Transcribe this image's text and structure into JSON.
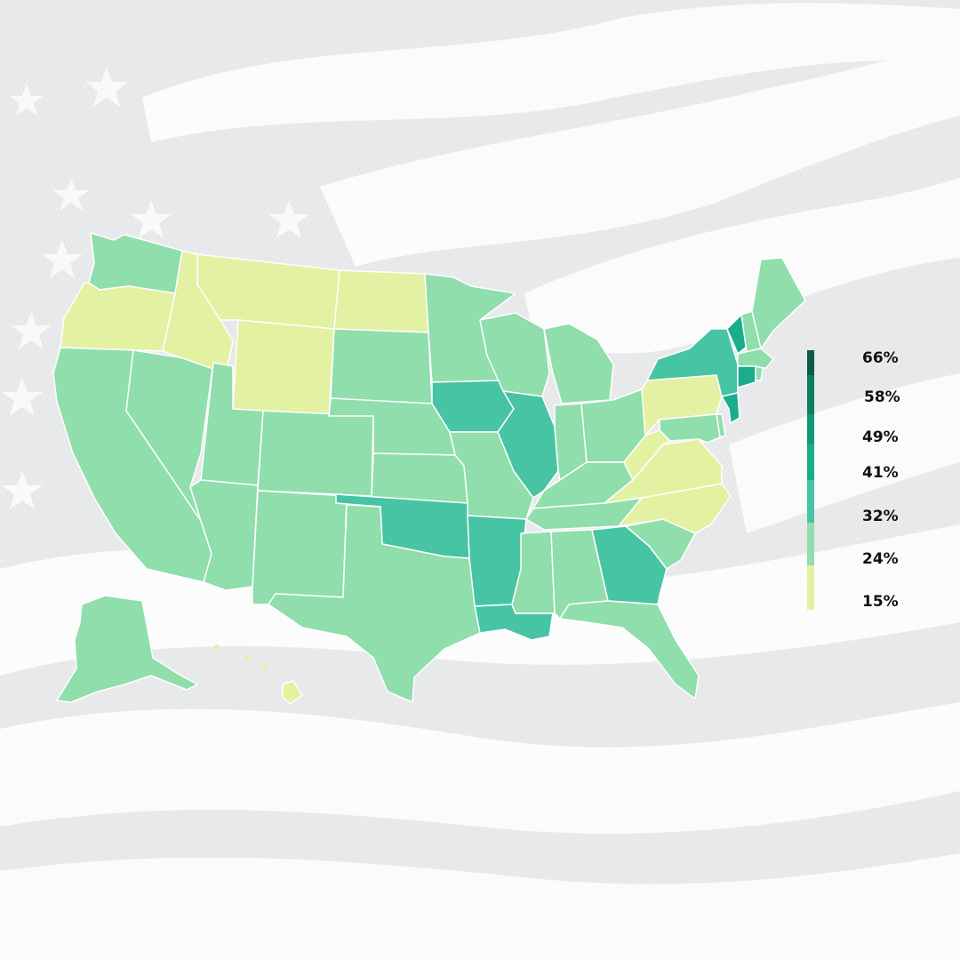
{
  "map": {
    "palette": {
      "c15": "#e3f1a2",
      "c24": "#8fdeab",
      "c32": "#47c4a3",
      "c41": "#19ad8b",
      "c49": "#0e9a78",
      "c58": "#0a7f61",
      "c66": "#0a5a44"
    },
    "legend": [
      {
        "label": "66%",
        "color": "#0a5a44"
      },
      {
        "label": "58%",
        "color": "#0a7f61"
      },
      {
        "label": "49%",
        "color": "#0e9a78"
      },
      {
        "label": "41%",
        "color": "#19ad8b"
      },
      {
        "label": "32%",
        "color": "#47c4a3"
      },
      {
        "label": "24%",
        "color": "#8fdeab"
      },
      {
        "label": "15%",
        "color": "#e3f1a2"
      }
    ],
    "state_colors": {
      "washington": "c24",
      "oregon": "c15",
      "california": "c24",
      "nevada": "c24",
      "idaho": "c15",
      "montana": "c15",
      "wyoming": "c15",
      "utah": "c24",
      "arizona": "c24",
      "new-mexico": "c24",
      "colorado": "c24",
      "north-dakota": "c15",
      "south-dakota": "c24",
      "nebraska": "c24",
      "kansas": "c24",
      "oklahoma": "c32",
      "texas": "c24",
      "minnesota": "c24",
      "iowa": "c32",
      "missouri": "c24",
      "arkansas": "c32",
      "louisiana": "c32",
      "wisconsin": "c24",
      "illinois": "c32",
      "michigan": "c24",
      "indiana": "c24",
      "ohio": "c24",
      "kentucky": "c24",
      "tennessee": "c24",
      "mississippi": "c24",
      "alabama": "c24",
      "georgia": "c32",
      "florida": "c24",
      "south-carolina": "c24",
      "north-carolina": "c15",
      "virginia": "c15",
      "west-virginia": "c15",
      "pennsylvania": "c15",
      "new-york": "c32",
      "vermont": "c41",
      "new-hampshire": "c24",
      "maine": "c24",
      "massachusetts": "c24",
      "connecticut": "c41",
      "rhode-island": "c24",
      "new-jersey": "c41",
      "delaware": "c24",
      "maryland": "c24",
      "alaska": "c24",
      "hawaii": "c15"
    }
  }
}
